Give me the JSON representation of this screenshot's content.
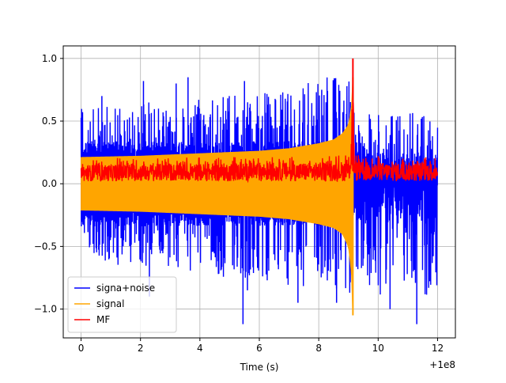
{
  "chart_data": {
    "type": "line",
    "title": "",
    "xlabel": "Time (s)",
    "ylabel": "",
    "x_offset_label": "+1e8",
    "xlim": [
      -0.6,
      12.6
    ],
    "ylim": [
      -1.23,
      1.1
    ],
    "xticks": [
      0,
      2,
      4,
      6,
      8,
      10,
      12
    ],
    "xtick_labels": [
      "0",
      "2",
      "4",
      "6",
      "8",
      "10",
      "12"
    ],
    "yticks": [
      -1.0,
      -0.5,
      0.0,
      0.5,
      1.0
    ],
    "ytick_labels": [
      "−1.0",
      "−0.5",
      "0.0",
      "0.5",
      "1.0"
    ],
    "grid": true,
    "legend_position": "lower-left",
    "series": [
      {
        "name": "signa+noise",
        "color": "#0000ff",
        "envelope": {
          "x": [
            0.0,
            2.0,
            4.0,
            6.0,
            8.0,
            9.0,
            9.15,
            9.2,
            10.0,
            12.0
          ],
          "upper": [
            0.63,
            0.65,
            0.68,
            0.72,
            0.85,
            0.86,
            0.95,
            0.6,
            0.55,
            0.58
          ],
          "lower": [
            -0.63,
            -0.66,
            -0.72,
            -0.78,
            -0.85,
            -0.85,
            -0.95,
            -0.7,
            -0.9,
            -0.9
          ]
        },
        "peaks": [
          {
            "x": 0.7,
            "y": 0.7
          },
          {
            "x": 2.1,
            "y": 0.82
          },
          {
            "x": 3.2,
            "y": 0.8
          },
          {
            "x": 3.6,
            "y": 0.85
          },
          {
            "x": 5.5,
            "y": 0.82
          },
          {
            "x": 8.1,
            "y": 0.75
          },
          {
            "x": 2.3,
            "y": -0.9
          },
          {
            "x": 5.45,
            "y": -1.12
          },
          {
            "x": 5.6,
            "y": -0.85
          },
          {
            "x": 7.3,
            "y": -0.95
          },
          {
            "x": 8.6,
            "y": -0.95
          },
          {
            "x": 11.3,
            "y": -1.12
          },
          {
            "x": 10.4,
            "y": -1.0
          }
        ]
      },
      {
        "name": "signal",
        "color": "#ffa500",
        "envelope": {
          "x": [
            0.0,
            2.0,
            4.0,
            6.0,
            7.0,
            8.0,
            8.5,
            8.8,
            9.0,
            9.1,
            9.15,
            9.2
          ],
          "upper": [
            0.21,
            0.22,
            0.24,
            0.26,
            0.28,
            0.32,
            0.35,
            0.4,
            0.47,
            0.6,
            0.85,
            0.0
          ],
          "lower": [
            -0.21,
            -0.22,
            -0.24,
            -0.26,
            -0.28,
            -0.32,
            -0.35,
            -0.4,
            -0.5,
            -0.7,
            -1.05,
            0.0
          ]
        }
      },
      {
        "name": "MF",
        "color": "#ff0000",
        "envelope": {
          "x": [
            0.0,
            2.0,
            4.0,
            6.0,
            8.0,
            9.0,
            9.1,
            9.15,
            9.2,
            10.0,
            12.0
          ],
          "upper": [
            0.15,
            0.16,
            0.16,
            0.17,
            0.17,
            0.18,
            0.5,
            1.0,
            0.18,
            0.17,
            0.17
          ],
          "lower": [
            0.02,
            0.02,
            0.02,
            0.02,
            0.02,
            0.02,
            0.02,
            0.05,
            0.02,
            0.02,
            0.02
          ]
        },
        "peak": {
          "x": 9.15,
          "y": 1.0
        }
      }
    ]
  }
}
